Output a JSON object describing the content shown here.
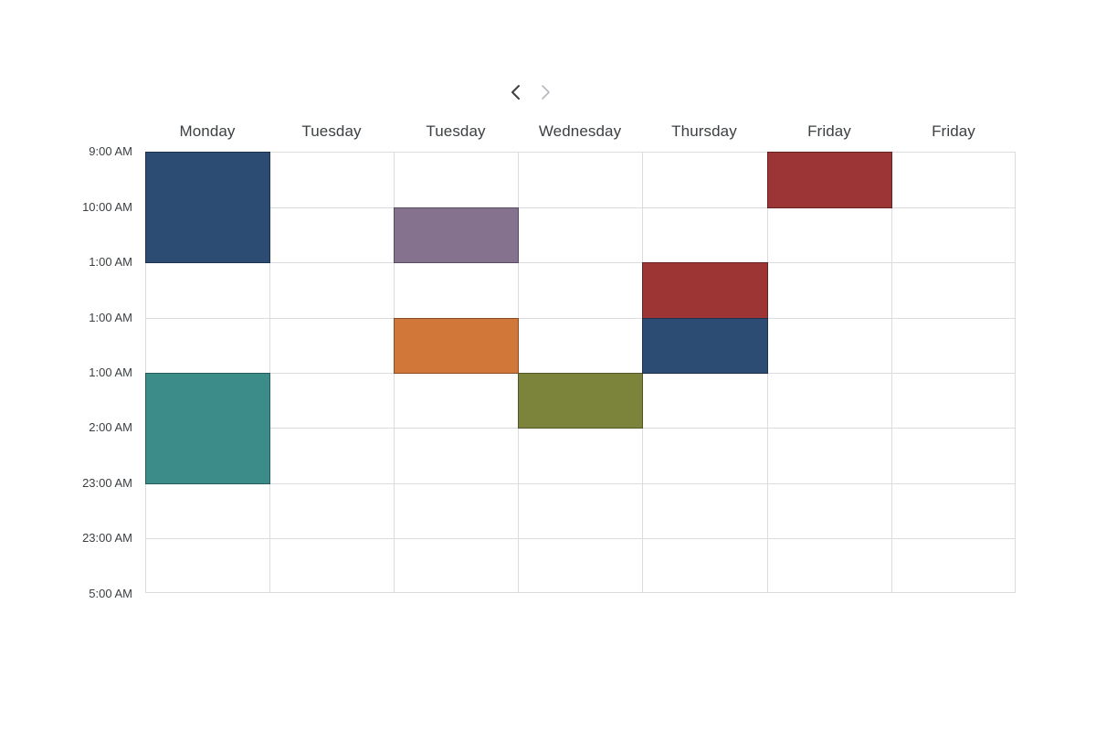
{
  "navigation": {
    "prev_icon": "chevron-left-icon",
    "next_icon": "chevron-right-icon"
  },
  "days": [
    "Monday",
    "Tuesday",
    "Tuesday",
    "Wednesday",
    "Thursday",
    "Friday",
    "Friday"
  ],
  "time_labels": [
    "9:00 AM",
    "10:00 AM",
    "1:00 AM",
    "1:00 AM",
    "1:00 AM",
    "2:00 AM",
    "23:00 AM",
    "23:00 AM",
    "5:00 AM"
  ],
  "events": [
    {
      "day": 0,
      "start_row": 0,
      "end_row": 2,
      "color": "#2c4c74"
    },
    {
      "day": 0,
      "start_row": 4,
      "end_row": 6,
      "color": "#3c8c8a"
    },
    {
      "day": 2,
      "start_row": 1,
      "end_row": 2,
      "color": "#85728f"
    },
    {
      "day": 2,
      "start_row": 3,
      "end_row": 4,
      "color": "#d1773a"
    },
    {
      "day": 3,
      "start_row": 4,
      "end_row": 5,
      "color": "#7c843c"
    },
    {
      "day": 4,
      "start_row": 2,
      "end_row": 3,
      "color": "#9e3535"
    },
    {
      "day": 4,
      "start_row": 3,
      "end_row": 4,
      "color": "#2c4c74"
    },
    {
      "day": 5,
      "start_row": 0,
      "end_row": 1,
      "color": "#9c3535"
    }
  ],
  "colors": {
    "grid_line": "#dadce0",
    "text": "#3c4043"
  }
}
